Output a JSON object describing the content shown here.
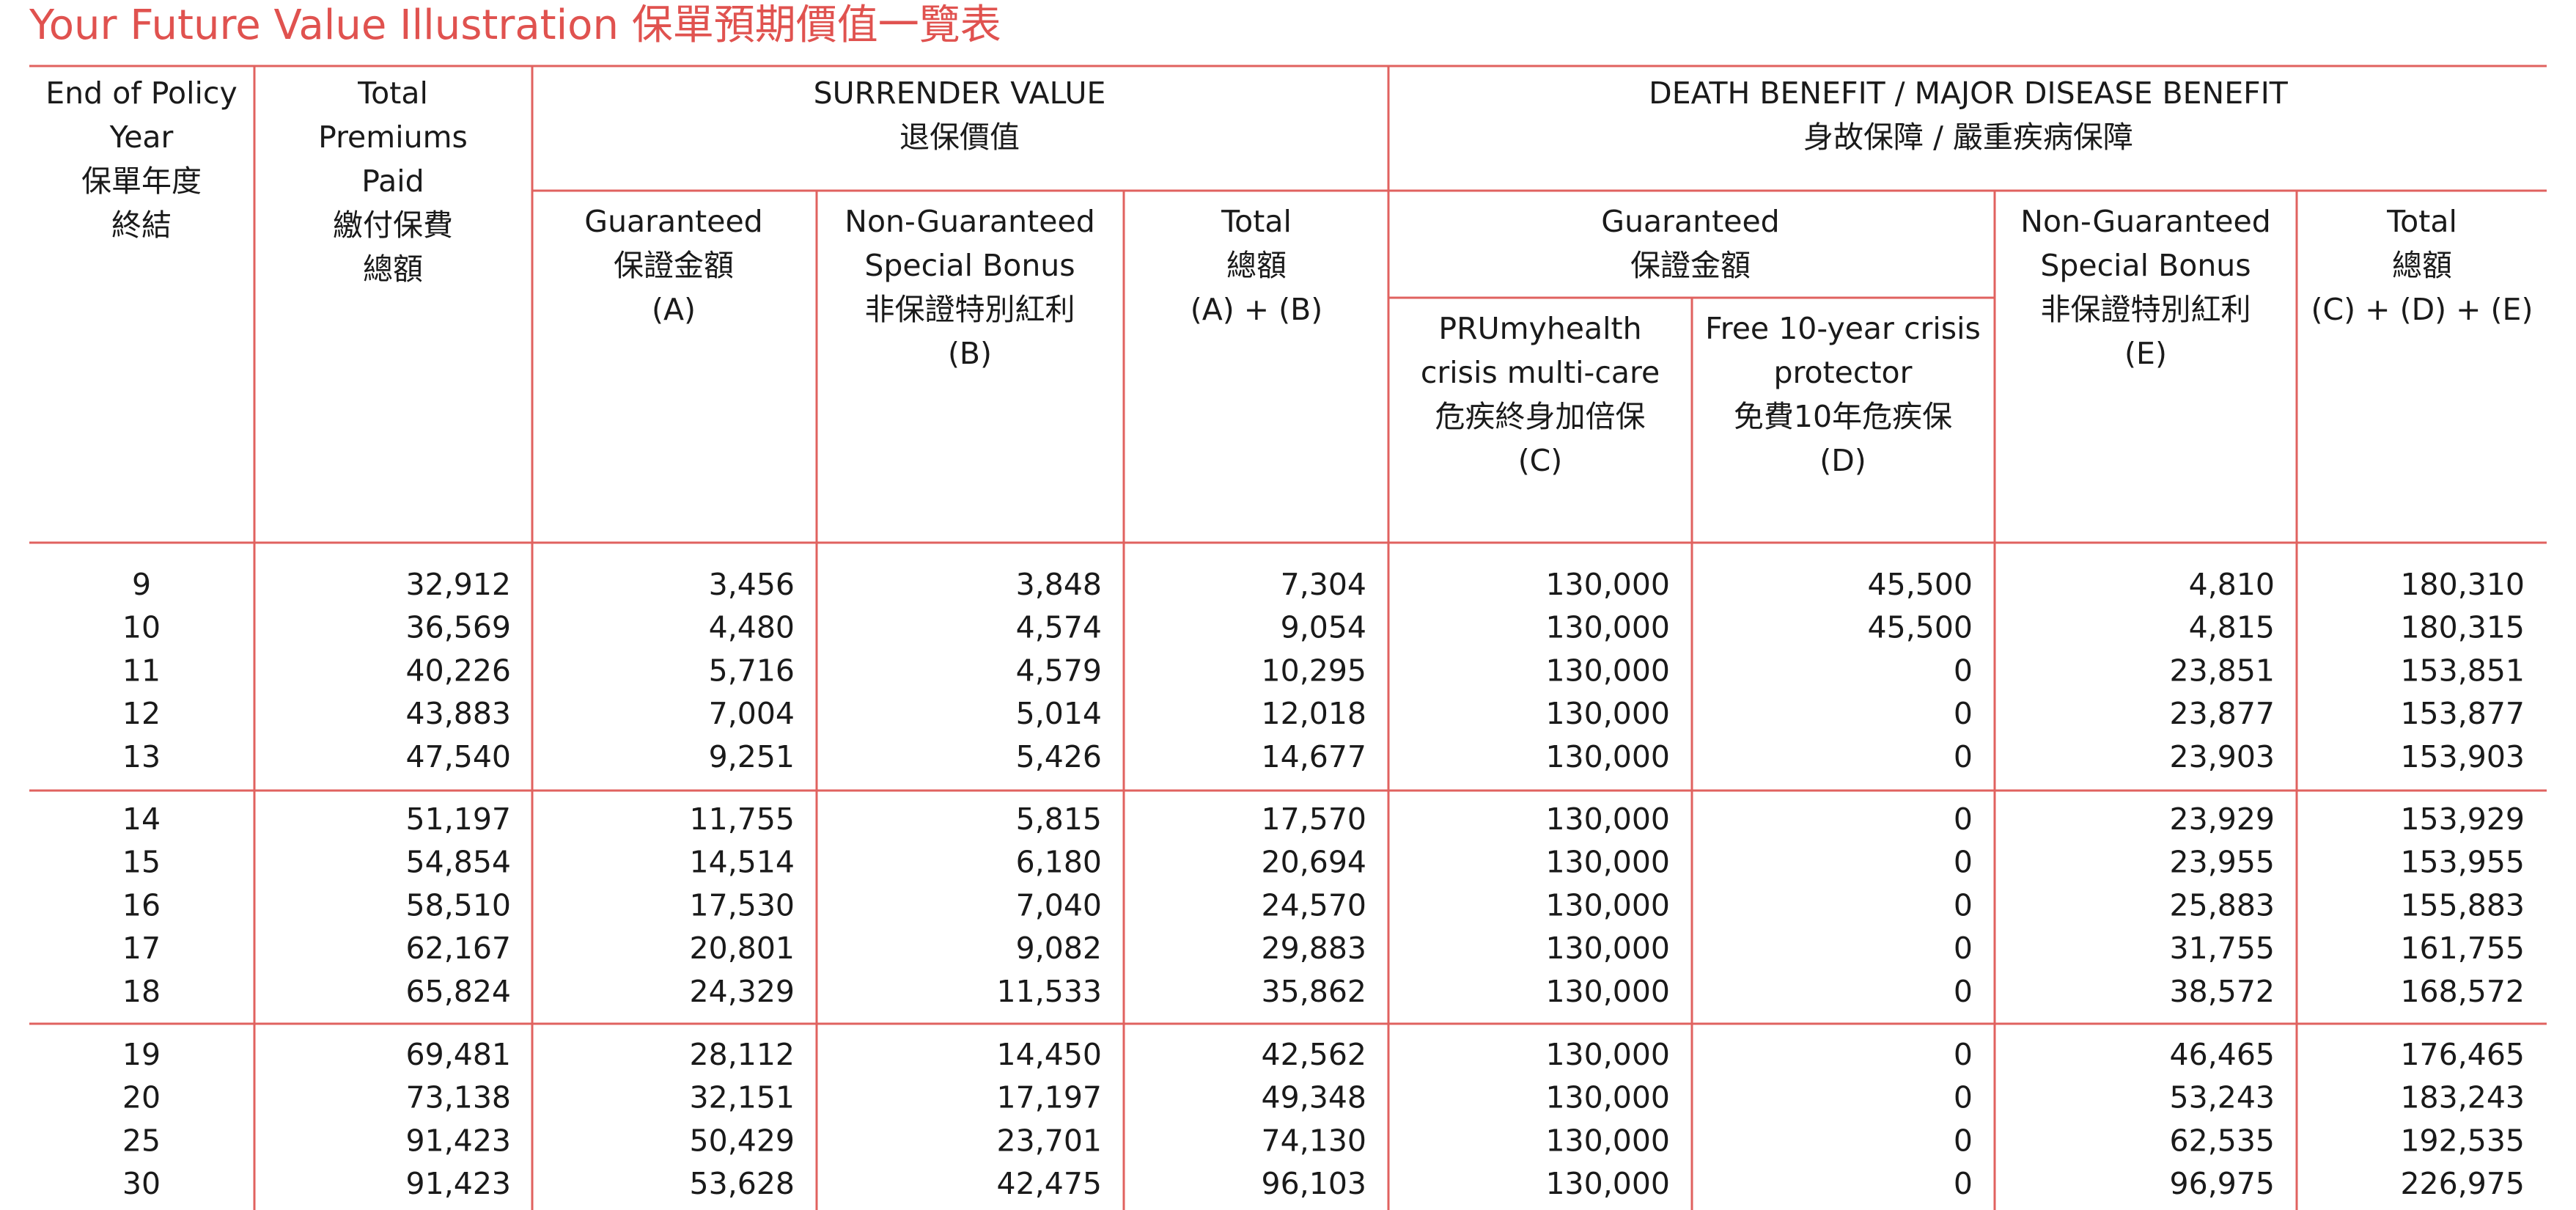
{
  "title": "Your Future Value Illustration 保單預期價值一覽表",
  "header": [
    {
      "lines": [
        "End of Policy",
        "Year",
        "保單年度",
        "終結"
      ]
    },
    {
      "lines": [
        "Total",
        "Premiums",
        "Paid",
        "繳付保費",
        "總額"
      ]
    },
    {
      "lines": [
        "SURRENDER VALUE",
        "退保價值"
      ]
    },
    {
      "lines": [
        "DEATH BENEFIT / MAJOR DISEASE BENEFIT",
        "身故保障 / 嚴重疾病保障"
      ]
    },
    {
      "lines": [
        "Guaranteed",
        "保證金額",
        "(A)"
      ]
    },
    {
      "lines": [
        "Non-Guaranteed",
        "Special Bonus",
        "非保證特別紅利",
        "(B)"
      ]
    },
    {
      "lines": [
        "Total",
        "總額",
        "(A) + (B)"
      ]
    },
    {
      "lines": [
        "Guaranteed",
        "保證金額"
      ]
    },
    {
      "lines": [
        "PRUmyhealth",
        "crisis multi-care",
        "危疾終身加倍保",
        "(C)"
      ]
    },
    {
      "lines": [
        "Free 10-year crisis",
        "protector",
        "免費10年危疾保",
        "(D)"
      ]
    },
    {
      "lines": [
        "Non-Guaranteed",
        "Special Bonus",
        "非保證特別紅利",
        "(E)"
      ]
    },
    {
      "lines": [
        "Total",
        "總額",
        "(C) + (D) + (E)"
      ]
    }
  ],
  "rows": [
    [
      "9",
      "32,912",
      "3,456",
      "3,848",
      "7,304",
      "130,000",
      "45,500",
      "4,810",
      "180,310"
    ],
    [
      "10",
      "36,569",
      "4,480",
      "4,574",
      "9,054",
      "130,000",
      "45,500",
      "4,815",
      "180,315"
    ],
    [
      "11",
      "40,226",
      "5,716",
      "4,579",
      "10,295",
      "130,000",
      "0",
      "23,851",
      "153,851"
    ],
    [
      "12",
      "43,883",
      "7,004",
      "5,014",
      "12,018",
      "130,000",
      "0",
      "23,877",
      "153,877"
    ],
    [
      "13",
      "47,540",
      "9,251",
      "5,426",
      "14,677",
      "130,000",
      "0",
      "23,903",
      "153,903"
    ],
    [
      "14",
      "51,197",
      "11,755",
      "5,815",
      "17,570",
      "130,000",
      "0",
      "23,929",
      "153,929"
    ],
    [
      "15",
      "54,854",
      "14,514",
      "6,180",
      "20,694",
      "130,000",
      "0",
      "23,955",
      "153,955"
    ],
    [
      "16",
      "58,510",
      "17,530",
      "7,040",
      "24,570",
      "130,000",
      "0",
      "25,883",
      "155,883"
    ],
    [
      "17",
      "62,167",
      "20,801",
      "9,082",
      "29,883",
      "130,000",
      "0",
      "31,755",
      "161,755"
    ],
    [
      "18",
      "65,824",
      "24,329",
      "11,533",
      "35,862",
      "130,000",
      "0",
      "38,572",
      "168,572"
    ],
    [
      "19",
      "69,481",
      "28,112",
      "14,450",
      "42,562",
      "130,000",
      "0",
      "46,465",
      "176,465"
    ],
    [
      "20",
      "73,138",
      "32,151",
      "17,197",
      "49,348",
      "130,000",
      "0",
      "53,243",
      "183,243"
    ],
    [
      "25",
      "91,423",
      "50,429",
      "23,701",
      "74,130",
      "130,000",
      "0",
      "62,535",
      "192,535"
    ],
    [
      "30",
      "91,423",
      "53,628",
      "42,475",
      "96,103",
      "130,000",
      "0",
      "96,975",
      "226,975"
    ]
  ]
}
